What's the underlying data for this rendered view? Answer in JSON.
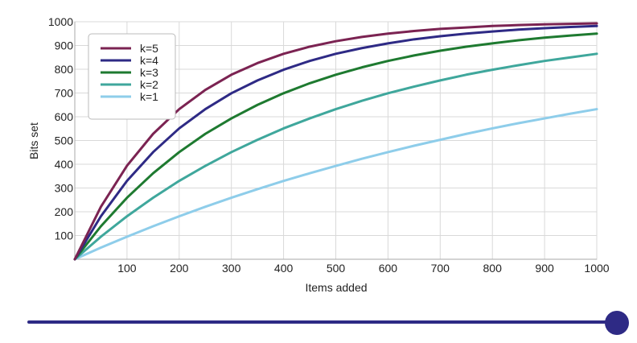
{
  "chart_data": {
    "type": "line",
    "xlabel": "Items added",
    "ylabel": "Bits set",
    "xlim": [
      0,
      1000
    ],
    "ylim": [
      0,
      1000
    ],
    "x_ticks": [
      100,
      200,
      300,
      400,
      500,
      600,
      700,
      800,
      900,
      1000
    ],
    "y_ticks": [
      100,
      200,
      300,
      400,
      500,
      600,
      700,
      800,
      900,
      1000
    ],
    "grid": true,
    "legend_position": "top-left",
    "x": [
      0,
      50,
      100,
      150,
      200,
      250,
      300,
      350,
      400,
      450,
      500,
      550,
      600,
      650,
      700,
      750,
      800,
      850,
      900,
      950,
      1000
    ],
    "series": [
      {
        "name": "k=5",
        "color": "#7b2352",
        "values": [
          0,
          221,
          394,
          528,
          632,
          713,
          777,
          826,
          865,
          895,
          918,
          936,
          950,
          961,
          970,
          976,
          982,
          986,
          989,
          991,
          993
        ]
      },
      {
        "name": "k=4",
        "color": "#2e2a85",
        "values": [
          0,
          181,
          330,
          451,
          551,
          632,
          699,
          753,
          798,
          835,
          865,
          889,
          909,
          926,
          939,
          950,
          959,
          967,
          973,
          978,
          982
        ]
      },
      {
        "name": "k=3",
        "color": "#1e7a30",
        "values": [
          0,
          139,
          259,
          362,
          451,
          528,
          593,
          650,
          699,
          741,
          777,
          808,
          835,
          858,
          878,
          895,
          909,
          922,
          933,
          942,
          950
        ]
      },
      {
        "name": "k=2",
        "color": "#3fa79c",
        "values": [
          0,
          95,
          181,
          259,
          330,
          393,
          451,
          503,
          551,
          593,
          632,
          667,
          699,
          727,
          753,
          777,
          798,
          817,
          835,
          850,
          865
        ]
      },
      {
        "name": "k=1",
        "color": "#8ecdea",
        "values": [
          0,
          49,
          95,
          139,
          181,
          221,
          259,
          295,
          330,
          362,
          393,
          423,
          451,
          478,
          503,
          528,
          551,
          573,
          593,
          613,
          632
        ]
      }
    ]
  },
  "slider": {
    "value": 1000,
    "min": 0,
    "max": 1000,
    "track_color": "#2e2a85",
    "thumb_color": "#2e2a85"
  }
}
